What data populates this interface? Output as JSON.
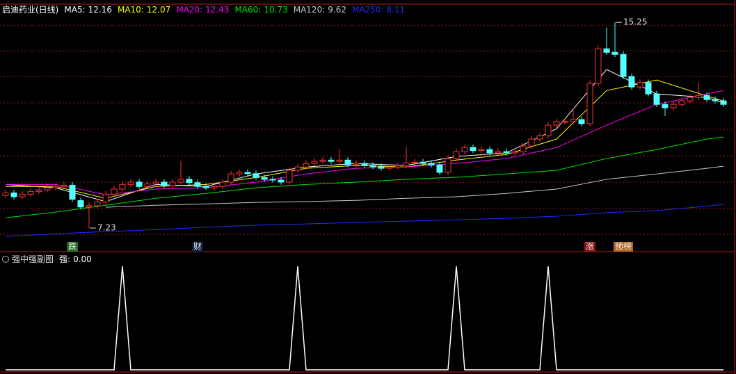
{
  "chart_data": [
    {
      "type": "candlestick",
      "title": "启迪药业(日线)",
      "legend_separator": ":",
      "ylim": [
        6.77,
        15.58
      ],
      "gridlines": [
        15.14,
        14.14,
        13.14,
        12.11,
        11.08,
        10.05,
        9.02,
        7.99,
        6.98
      ],
      "up_color": "#ff3232",
      "down_color": "#54ffff",
      "open": [
        8.5,
        8.6,
        8.45,
        8.55,
        8.66,
        8.72,
        8.8,
        8.85,
        8.9,
        8.3,
        8.05,
        8.1,
        8.25,
        8.55,
        8.75,
        8.93,
        9.02,
        8.85,
        8.95,
        9.02,
        8.88,
        9.02,
        9.13,
        9.0,
        8.85,
        8.8,
        8.85,
        9.02,
        9.34,
        9.4,
        9.35,
        9.2,
        9.13,
        9.1,
        9.02,
        9.48,
        9.61,
        9.75,
        9.83,
        9.88,
        9.83,
        9.88,
        9.7,
        9.75,
        9.67,
        9.62,
        9.56,
        9.61,
        9.67,
        9.77,
        9.8,
        9.75,
        9.69,
        9.4,
        9.94,
        10.21,
        10.37,
        10.25,
        10.29,
        10.16,
        10.21,
        10.16,
        10.2,
        10.43,
        10.7,
        10.83,
        11.24,
        11.38,
        11.38,
        11.46,
        11.3,
        12.87,
        14.22,
        14.08,
        14.0,
        13.14,
        12.73,
        12.9,
        12.46,
        12.05,
        11.92,
        12.05,
        12.19,
        12.32,
        12.4,
        12.24,
        12.19
      ],
      "high": [
        8.72,
        8.72,
        8.67,
        8.78,
        8.84,
        8.92,
        8.97,
        9.02,
        9.02,
        8.42,
        8.22,
        8.37,
        8.67,
        8.87,
        9.05,
        9.14,
        9.14,
        9.07,
        9.14,
        9.14,
        9.14,
        9.85,
        9.25,
        9.12,
        8.97,
        8.97,
        9.14,
        9.46,
        9.52,
        9.52,
        9.47,
        9.32,
        9.25,
        9.22,
        9.6,
        9.73,
        9.87,
        9.95,
        10.0,
        10.0,
        10.3,
        10.0,
        9.87,
        9.87,
        9.79,
        9.74,
        9.73,
        9.79,
        10.4,
        9.92,
        9.92,
        9.87,
        9.81,
        10.06,
        10.33,
        10.49,
        10.49,
        10.41,
        10.41,
        10.33,
        10.33,
        10.32,
        10.55,
        10.82,
        10.95,
        11.36,
        11.5,
        11.5,
        11.9,
        11.58,
        12.99,
        14.34,
        15.05,
        15.25,
        14.12,
        13.26,
        13.02,
        13.02,
        12.58,
        12.17,
        12.17,
        12.31,
        12.44,
        12.9,
        12.52,
        12.36,
        12.31
      ],
      "low": [
        8.4,
        8.35,
        8.35,
        8.45,
        8.56,
        8.62,
        8.7,
        8.75,
        8.25,
        7.95,
        7.23,
        8.0,
        8.15,
        8.45,
        8.65,
        8.83,
        8.75,
        8.75,
        8.85,
        8.78,
        8.78,
        8.92,
        8.9,
        8.75,
        8.7,
        8.7,
        8.75,
        8.92,
        9.24,
        9.25,
        9.1,
        9.03,
        9.0,
        8.92,
        8.92,
        9.38,
        9.51,
        9.65,
        9.73,
        9.73,
        9.73,
        9.6,
        9.6,
        9.57,
        9.52,
        9.46,
        9.46,
        9.51,
        9.57,
        9.67,
        9.65,
        9.59,
        9.3,
        9.3,
        9.84,
        10.11,
        10.15,
        10.15,
        10.06,
        10.06,
        10.06,
        10.06,
        10.1,
        10.33,
        10.6,
        10.73,
        11.14,
        11.28,
        11.28,
        11.2,
        11.2,
        12.77,
        13.98,
        13.9,
        13.04,
        12.63,
        12.63,
        12.36,
        11.95,
        11.6,
        11.82,
        11.95,
        12.09,
        12.22,
        12.14,
        12.09,
        11.95
      ],
      "close": [
        8.6,
        8.45,
        8.55,
        8.66,
        8.72,
        8.8,
        8.85,
        8.9,
        8.35,
        8.05,
        8.1,
        8.25,
        8.55,
        8.75,
        8.93,
        9.02,
        8.85,
        8.95,
        9.02,
        8.88,
        9.02,
        9.13,
        9.0,
        8.85,
        8.8,
        8.85,
        9.02,
        9.34,
        9.4,
        9.35,
        9.2,
        9.13,
        9.1,
        9.02,
        9.48,
        9.61,
        9.75,
        9.83,
        9.88,
        9.83,
        9.88,
        9.7,
        9.75,
        9.67,
        9.62,
        9.56,
        9.61,
        9.67,
        9.77,
        9.8,
        9.75,
        9.69,
        9.4,
        9.94,
        10.21,
        10.37,
        10.25,
        10.29,
        10.16,
        10.21,
        10.16,
        10.2,
        10.43,
        10.7,
        10.83,
        11.24,
        11.38,
        11.38,
        11.46,
        11.3,
        12.87,
        14.22,
        14.08,
        14.0,
        13.14,
        12.73,
        12.9,
        12.46,
        12.05,
        11.92,
        12.05,
        12.19,
        12.32,
        12.4,
        12.24,
        12.19,
        12.05
      ],
      "ma_x": [
        0,
        6,
        12,
        18,
        24,
        30,
        36,
        42,
        48,
        54,
        60,
        66,
        72,
        78,
        84,
        86
      ],
      "series": [
        {
          "name": "MA5",
          "color": "#ffffff",
          "legend_value": 12.16,
          "values": [
            8.93,
            8.8,
            8.26,
            8.93,
            8.85,
            9.34,
            9.61,
            9.75,
            9.67,
            10.02,
            10.16,
            11.1,
            13.41,
            12.46,
            12.32,
            12.11
          ]
        },
        {
          "name": "MA10",
          "color": "#ffff00",
          "legend_value": 12.07,
          "values": [
            8.85,
            8.85,
            8.39,
            8.85,
            8.93,
            9.2,
            9.56,
            9.67,
            9.61,
            9.88,
            10.1,
            10.7,
            12.59,
            13.0,
            12.38,
            12.19
          ]
        },
        {
          "name": "MA20",
          "color": "#ff00ff",
          "legend_value": 12.43,
          "values": [
            8.93,
            8.93,
            8.53,
            8.75,
            8.8,
            9.02,
            9.34,
            9.56,
            9.61,
            9.75,
            9.94,
            10.37,
            11.24,
            12.05,
            12.46,
            12.59
          ]
        },
        {
          "name": "MA60",
          "color": "#00e600",
          "legend_value": 10.73,
          "values": [
            7.63,
            7.85,
            8.12,
            8.39,
            8.58,
            8.8,
            8.93,
            9.02,
            9.13,
            9.21,
            9.34,
            9.48,
            9.94,
            10.29,
            10.7,
            10.78
          ]
        },
        {
          "name": "MA120",
          "color": "#c8c8c8",
          "legend_value": 9.62,
          "values": [
            null,
            null,
            8.04,
            8.12,
            8.17,
            8.23,
            8.26,
            8.31,
            8.39,
            8.45,
            8.58,
            8.75,
            9.13,
            9.34,
            9.56,
            9.64
          ]
        },
        {
          "name": "MA250",
          "color": "#2828ff",
          "legend_value": 8.11,
          "values": [
            6.9,
            7.01,
            7.09,
            7.17,
            7.26,
            7.34,
            7.39,
            7.45,
            7.5,
            7.55,
            7.61,
            7.69,
            7.83,
            7.91,
            8.08,
            8.16
          ]
        }
      ],
      "events": [
        {
          "index": 8,
          "label": "跌",
          "color": "#1e6e1e"
        },
        {
          "index": 23,
          "label": "财",
          "color": "#0c1c3c"
        },
        {
          "index": 70,
          "label": "涨",
          "color": "#8c1414"
        },
        {
          "index": 74,
          "label": "预榜",
          "color": "#b4641e"
        }
      ]
    },
    {
      "type": "line",
      "title": "强中强副图",
      "legend_separator": ":",
      "ylim": [
        0,
        1
      ],
      "series": [
        {
          "name": "强",
          "color": "#ffffff",
          "legend_value": 0,
          "legend_value_label": "0.00",
          "values": [
            0,
            0,
            0,
            0,
            0,
            0,
            0,
            0,
            0,
            0,
            0,
            0,
            0,
            0,
            1,
            0,
            0,
            0,
            0,
            0,
            0,
            0,
            0,
            0,
            0,
            0,
            0,
            0,
            0,
            0,
            0,
            0,
            0,
            0,
            0,
            1,
            0,
            0,
            0,
            0,
            0,
            0,
            0,
            0,
            0,
            0,
            0,
            0,
            0,
            0,
            0,
            0,
            0,
            0,
            1,
            0,
            0,
            0,
            0,
            0,
            0,
            0,
            0,
            0,
            0,
            1,
            0,
            0,
            0,
            0,
            0,
            0,
            0,
            0,
            0,
            0,
            0,
            0,
            0,
            0,
            0,
            0,
            0,
            0,
            0,
            0,
            0
          ]
        }
      ]
    }
  ]
}
